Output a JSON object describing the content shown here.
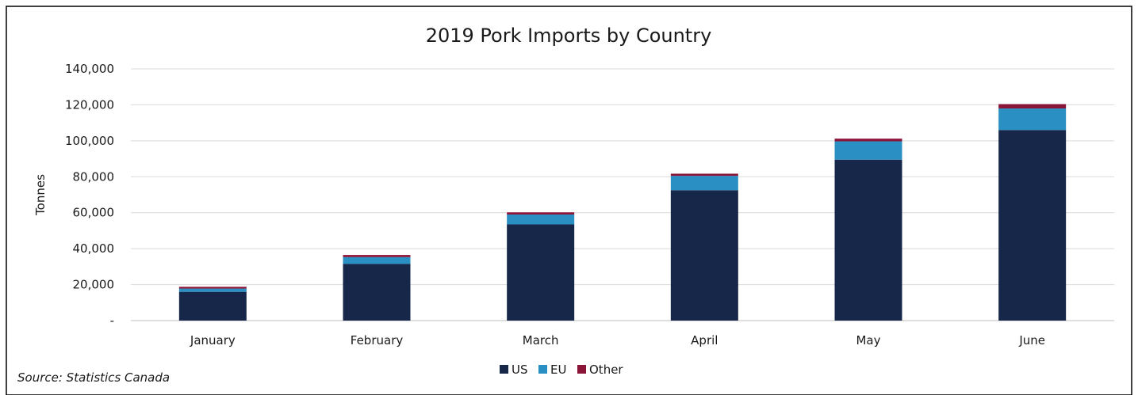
{
  "chart_data": {
    "type": "bar",
    "stacked": true,
    "title": "2019 Pork Imports by Country",
    "xlabel": "",
    "ylabel": "Tonnes",
    "ylim": [
      0,
      140000
    ],
    "y_ticks": [
      "-",
      "20,000",
      "40,000",
      "60,000",
      "80,000",
      "100,000",
      "120,000",
      "140,000"
    ],
    "categories": [
      "January",
      "February",
      "March",
      "April",
      "May",
      "June"
    ],
    "series": [
      {
        "name": "US",
        "color": "#17274a",
        "values": [
          16000,
          31500,
          53500,
          72500,
          89500,
          106000
        ]
      },
      {
        "name": "EU",
        "color": "#2a8fc2",
        "values": [
          1800,
          3800,
          5500,
          8000,
          10200,
          12000
        ]
      },
      {
        "name": "Other",
        "color": "#8b1538",
        "values": [
          1000,
          1200,
          1200,
          1200,
          1500,
          2400
        ]
      }
    ],
    "grid": true,
    "legend": "bottom"
  },
  "footer": {
    "source": "Source: Statistics Canada"
  }
}
